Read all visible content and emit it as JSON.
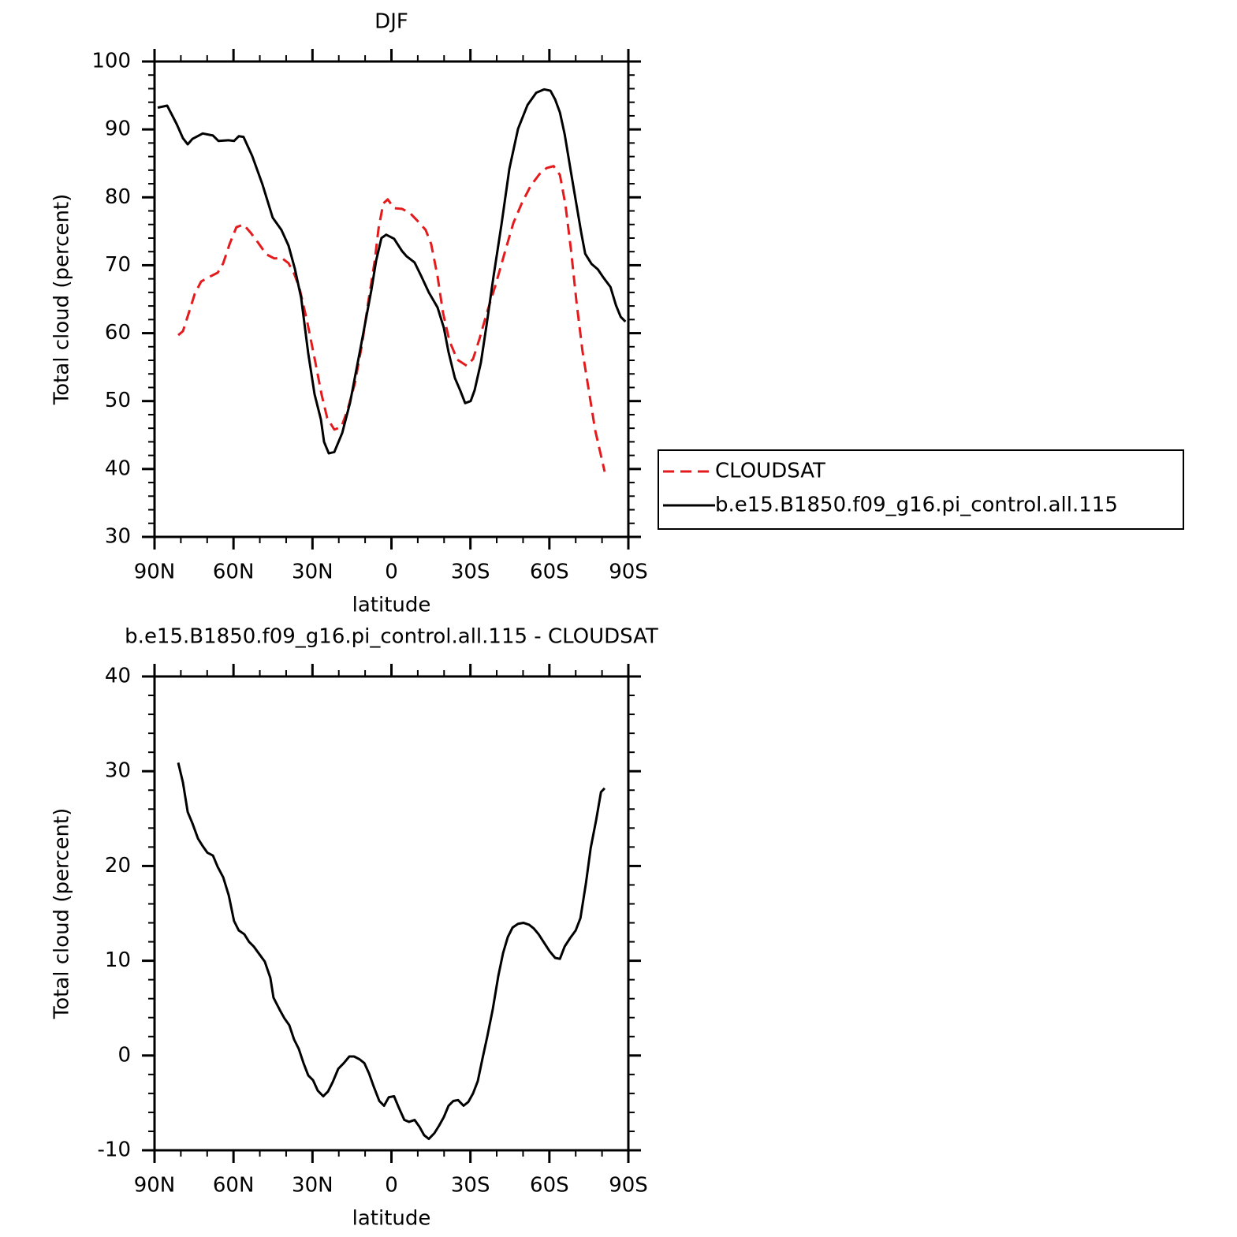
{
  "chart_data": [
    {
      "type": "line",
      "title": "DJF",
      "x_label": "latitude",
      "y_label": "Total cloud (percent)",
      "xlim": [
        90,
        -90
      ],
      "xticks": [
        {
          "value": 90,
          "label": "90N"
        },
        {
          "value": 60,
          "label": "60N"
        },
        {
          "value": 30,
          "label": "30N"
        },
        0,
        {
          "value": -30,
          "label": "30S"
        },
        {
          "value": -60,
          "label": "60S"
        },
        {
          "value": -90,
          "label": "90S"
        }
      ],
      "ylim": [
        30,
        100
      ],
      "yticks": [
        30,
        40,
        50,
        60,
        70,
        80,
        90,
        100
      ],
      "legend": "right",
      "series": [
        {
          "name": "CLOUDSAT",
          "color": "#e41a1c",
          "linestyle": "dashed",
          "x": [
            81.0,
            79.2,
            76.8,
            74.7,
            72.3,
            69.6,
            66.0,
            63.9,
            61.5,
            58.9,
            56.2,
            53.5,
            50.8,
            47.5,
            44.5,
            41.8,
            39.1,
            37.0,
            34.9,
            31.9,
            28.9,
            26.5,
            24.4,
            21.7,
            19.0,
            16.6,
            13.9,
            11.2,
            8.8,
            6.4,
            4.9,
            3.1,
            1.4,
            -1.0,
            -4.0,
            -7.0,
            -10.0,
            -13.0,
            -15.1,
            -17.5,
            -19.6,
            -22.0,
            -25.0,
            -28.6,
            -31.0,
            -33.4,
            -36.1,
            -39.4,
            -43.0,
            -46.3,
            -49.6,
            -52.9,
            -56.2,
            -58.9,
            -61.6,
            -64.0,
            -66.1,
            -68.2,
            -70.3,
            -72.6,
            -75.0,
            -77.4,
            -81.0
          ],
          "values": [
            59.7,
            60.3,
            63.2,
            65.8,
            67.6,
            68.2,
            68.9,
            70.3,
            73.1,
            75.6,
            76.0,
            74.8,
            73.4,
            71.6,
            71.0,
            71.1,
            70.3,
            68.8,
            66.6,
            61.5,
            55.7,
            50.9,
            47.5,
            45.8,
            46.2,
            48.8,
            52.6,
            58.3,
            64.6,
            70.5,
            75.4,
            79.1,
            79.7,
            78.4,
            78.3,
            77.7,
            76.5,
            75.2,
            73.1,
            68.4,
            63.0,
            58.9,
            56.1,
            55.2,
            56.2,
            59.1,
            62.8,
            66.9,
            71.8,
            76.2,
            79.2,
            81.7,
            83.4,
            84.3,
            84.6,
            83.3,
            78.9,
            72.3,
            64.6,
            57.3,
            51.5,
            45.7,
            39.6
          ]
        },
        {
          "name": "b.e15.B1850.f09_g16.pi_control.all.115",
          "color": "#000000",
          "linestyle": "solid",
          "x": [
            88.8,
            85.2,
            81.6,
            79.2,
            77.4,
            75.6,
            71.7,
            67.8,
            65.7,
            61.8,
            59.8,
            58.0,
            56.2,
            52.9,
            49.0,
            45.1,
            41.8,
            39.1,
            36.7,
            34.3,
            31.6,
            29.2,
            26.8,
            25.6,
            23.8,
            21.7,
            18.7,
            15.7,
            11.8,
            7.6,
            5.8,
            3.8,
            2.0,
            -1.0,
            -4.0,
            -5.8,
            -8.8,
            -11.2,
            -14.2,
            -17.5,
            -19.9,
            -21.7,
            -24.1,
            -26.2,
            -28.0,
            -30.1,
            -31.6,
            -34.0,
            -36.1,
            -38.8,
            -41.8,
            -44.8,
            -48.1,
            -51.7,
            -55.0,
            -58.0,
            -60.4,
            -62.2,
            -64.0,
            -65.8,
            -68.2,
            -70.3,
            -72.1,
            -73.6,
            -76.0,
            -78.4,
            -80.5,
            -83.2,
            -85.3,
            -87.1,
            -88.9
          ],
          "values": [
            93.2,
            93.5,
            90.8,
            88.7,
            87.8,
            88.6,
            89.4,
            89.1,
            88.3,
            88.4,
            88.3,
            89.0,
            88.9,
            86.1,
            81.9,
            77.0,
            75.2,
            72.9,
            69.5,
            65.2,
            57.0,
            51.0,
            47.3,
            44.0,
            42.3,
            42.5,
            45.3,
            49.8,
            57.7,
            66.4,
            70.7,
            74.0,
            74.5,
            73.9,
            72.1,
            71.3,
            70.4,
            68.5,
            66.0,
            63.8,
            60.8,
            57.2,
            53.4,
            51.5,
            49.7,
            50.0,
            51.6,
            55.7,
            61.1,
            68.4,
            76.0,
            84.2,
            90.1,
            93.6,
            95.4,
            95.9,
            95.7,
            94.4,
            92.5,
            89.3,
            83.7,
            78.9,
            74.8,
            71.7,
            70.2,
            69.4,
            68.2,
            66.8,
            64.1,
            62.4,
            61.7
          ]
        }
      ]
    },
    {
      "type": "line",
      "title": "b.e15.B1850.f09_g16.pi_control.all.115 - CLOUDSAT",
      "x_label": "latitude",
      "y_label": "Total cloud (percent)",
      "xlim": [
        90,
        -90
      ],
      "xticks": [
        {
          "value": 90,
          "label": "90N"
        },
        {
          "value": 60,
          "label": "60N"
        },
        {
          "value": 30,
          "label": "30N"
        },
        0,
        {
          "value": -30,
          "label": "30S"
        },
        {
          "value": -60,
          "label": "60S"
        },
        {
          "value": -90,
          "label": "90S"
        }
      ],
      "ylim": [
        -10,
        40
      ],
      "yticks": [
        -10,
        0,
        10,
        20,
        30,
        40
      ],
      "series": [
        {
          "color": "#000000",
          "linestyle": "solid",
          "x": [
            81.0,
            79.2,
            77.4,
            75.6,
            73.5,
            71.7,
            69.9,
            67.8,
            66.0,
            63.9,
            61.8,
            59.8,
            58.0,
            55.9,
            54.1,
            52.3,
            50.2,
            48.1,
            46.0,
            44.8,
            42.4,
            40.6,
            38.8,
            37.0,
            35.2,
            33.4,
            31.6,
            29.8,
            28.0,
            25.9,
            24.1,
            22.3,
            20.2,
            18.1,
            16.0,
            14.2,
            12.1,
            10.3,
            8.5,
            6.7,
            4.6,
            2.8,
            1.0,
            -1.0,
            -2.8,
            -4.9,
            -6.7,
            -8.8,
            -10.6,
            -12.4,
            -14.2,
            -16.3,
            -18.1,
            -19.9,
            -21.7,
            -23.5,
            -25.3,
            -27.4,
            -29.2,
            -31.0,
            -32.8,
            -34.6,
            -36.4,
            -38.5,
            -40.6,
            -42.4,
            -44.2,
            -46.0,
            -48.1,
            -50.2,
            -52.3,
            -54.1,
            -55.9,
            -58.0,
            -60.1,
            -62.2,
            -64.0,
            -65.8,
            -67.9,
            -70.0,
            -71.8,
            -73.9,
            -75.7,
            -77.8,
            -79.6,
            -81.0
          ],
          "values": [
            30.9,
            28.8,
            25.7,
            24.5,
            22.9,
            22.1,
            21.4,
            21.1,
            19.9,
            18.8,
            16.9,
            14.2,
            13.2,
            12.8,
            12.0,
            11.5,
            10.7,
            9.9,
            8.2,
            6.1,
            4.8,
            3.9,
            3.2,
            1.7,
            0.7,
            -0.8,
            -2.1,
            -2.6,
            -3.7,
            -4.3,
            -3.8,
            -2.8,
            -1.4,
            -0.8,
            -0.1,
            -0.1,
            -0.4,
            -0.8,
            -1.9,
            -3.3,
            -4.8,
            -5.3,
            -4.4,
            -4.3,
            -5.5,
            -6.8,
            -7.0,
            -6.8,
            -7.5,
            -8.4,
            -8.8,
            -8.2,
            -7.4,
            -6.5,
            -5.3,
            -4.8,
            -4.7,
            -5.3,
            -4.9,
            -4.0,
            -2.7,
            -0.3,
            2.0,
            4.9,
            8.4,
            10.8,
            12.5,
            13.5,
            13.9,
            14.0,
            13.8,
            13.4,
            12.8,
            11.9,
            11.0,
            10.3,
            10.2,
            11.5,
            12.4,
            13.2,
            14.5,
            18.2,
            21.9,
            24.9,
            27.8,
            28.2
          ]
        }
      ]
    }
  ]
}
